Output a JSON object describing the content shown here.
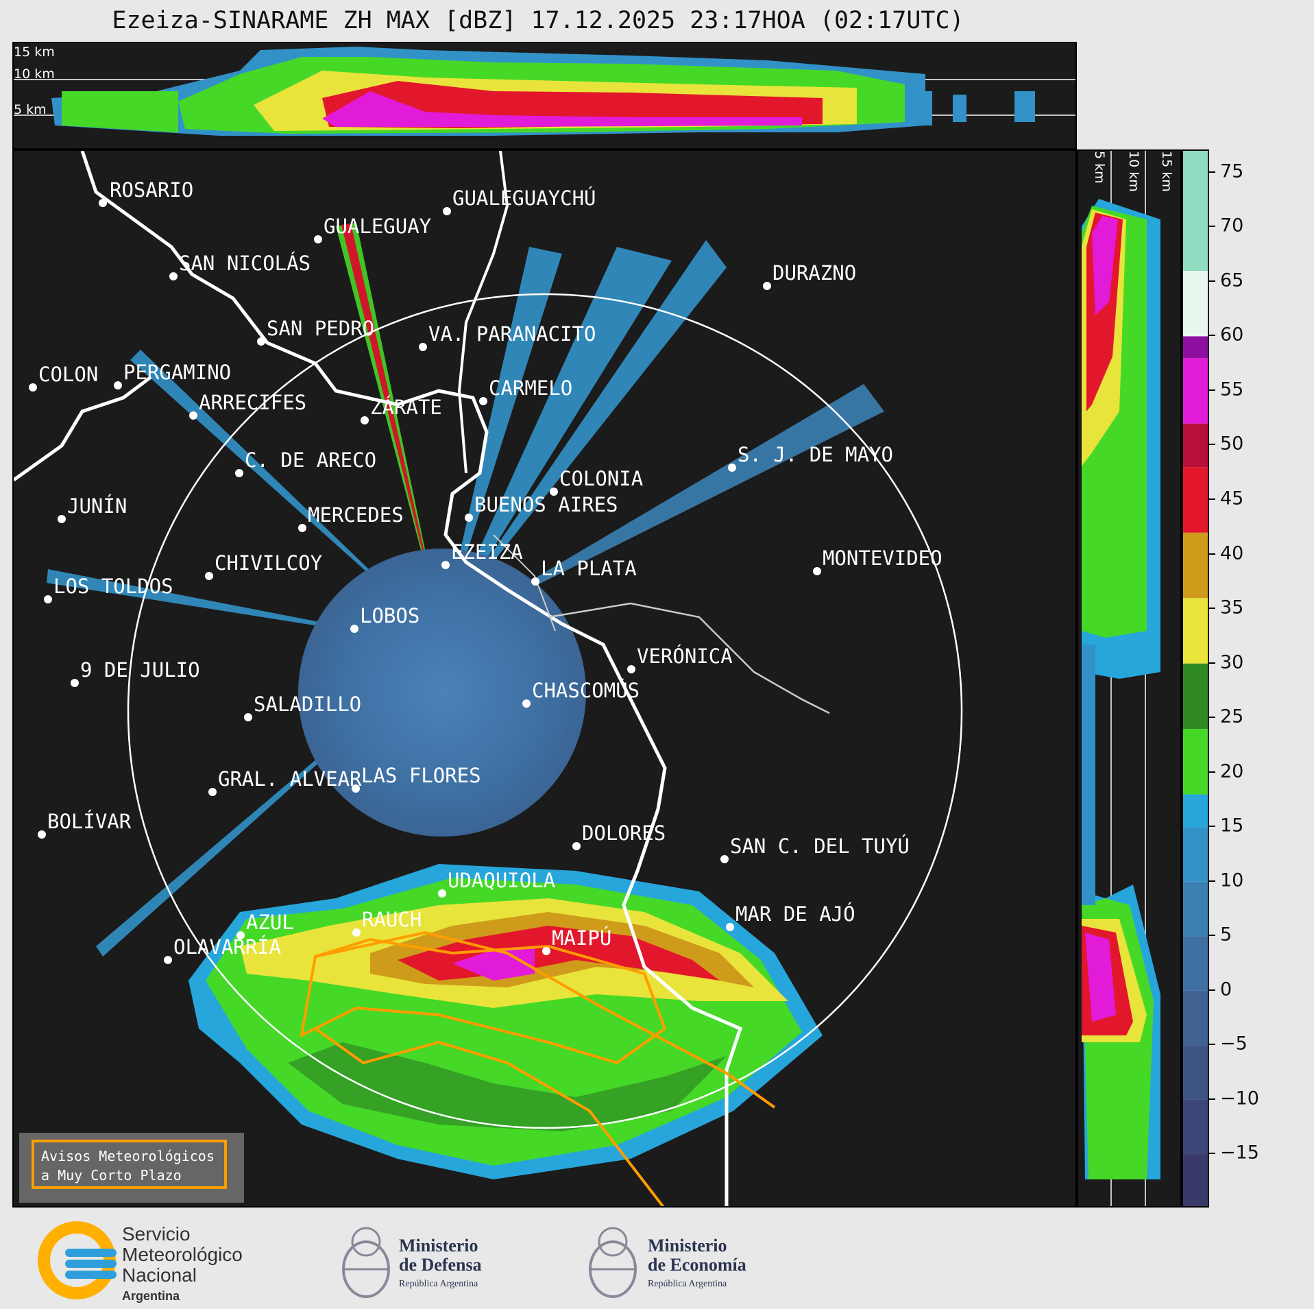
{
  "title": "Ezeiza-SINARAME ZH MAX [dBZ] 17.12.2025 23:17HOA (02:17UTC)",
  "top_panel": {
    "height_labels": [
      "15 km",
      "10 km",
      "5 km"
    ]
  },
  "side_panel": {
    "height_labels": [
      "5 km",
      "10 km",
      "15 km"
    ]
  },
  "colorbar": {
    "unit": "dBZ",
    "ticks": [
      "75",
      "70",
      "65",
      "60",
      "55",
      "50",
      "45",
      "40",
      "35",
      "30",
      "25",
      "20",
      "15",
      "10",
      "5",
      "0",
      "−5",
      "−10",
      "−15"
    ],
    "range": [
      -20,
      77
    ],
    "colors": [
      {
        "from": -20,
        "to": -15,
        "color": "#3a3a6a"
      },
      {
        "from": -15,
        "to": -10,
        "color": "#3c4777"
      },
      {
        "from": -10,
        "to": -5,
        "color": "#3e5485"
      },
      {
        "from": -5,
        "to": 0,
        "color": "#3f6293"
      },
      {
        "from": 0,
        "to": 5,
        "color": "#3f70a3"
      },
      {
        "from": 5,
        "to": 10,
        "color": "#3b80b3"
      },
      {
        "from": 10,
        "to": 15,
        "color": "#3292c8"
      },
      {
        "from": 15,
        "to": 18,
        "color": "#27a6dc"
      },
      {
        "from": 18,
        "to": 24,
        "color": "#45d827"
      },
      {
        "from": 24,
        "to": 30,
        "color": "#2f8a25"
      },
      {
        "from": 30,
        "to": 36,
        "color": "#e8e43b"
      },
      {
        "from": 36,
        "to": 42,
        "color": "#cf9b1a"
      },
      {
        "from": 42,
        "to": 48,
        "color": "#e3172b"
      },
      {
        "from": 48,
        "to": 52,
        "color": "#b50f3a"
      },
      {
        "from": 52,
        "to": 58,
        "color": "#e11bd8"
      },
      {
        "from": 58,
        "to": 60,
        "color": "#8d0fa0"
      },
      {
        "from": 60,
        "to": 66,
        "color": "#e9f6ee"
      },
      {
        "from": 66,
        "to": 77,
        "color": "#8fdcc0"
      }
    ]
  },
  "cities": [
    {
      "name": "ROSARIO"
    },
    {
      "name": "GUALEGUAYCHÚ"
    },
    {
      "name": "GUALEGUAY"
    },
    {
      "name": "SAN NICOLÁS"
    },
    {
      "name": "DURAZNO"
    },
    {
      "name": "SAN PEDRO"
    },
    {
      "name": "VA. PARANACITO"
    },
    {
      "name": "COLON"
    },
    {
      "name": "PERGAMINO"
    },
    {
      "name": "CARMELO"
    },
    {
      "name": "ARRECIFES"
    },
    {
      "name": "ZÁRATE"
    },
    {
      "name": "S. J. DE MAYO"
    },
    {
      "name": "C. DE ARECO"
    },
    {
      "name": "COLONIA"
    },
    {
      "name": "JUNÍN"
    },
    {
      "name": "BUENOS AIRES"
    },
    {
      "name": "MERCEDES"
    },
    {
      "name": "EZEIZA"
    },
    {
      "name": "MONTEVIDEO"
    },
    {
      "name": "CHIVILCOY"
    },
    {
      "name": "LA PLATA"
    },
    {
      "name": "LOS TOLDOS"
    },
    {
      "name": "LOBOS"
    },
    {
      "name": "VERÓNICA"
    },
    {
      "name": "9 DE JULIO"
    },
    {
      "name": "CHASCOMÚS"
    },
    {
      "name": "SALADILLO"
    },
    {
      "name": "GRAL. ALVEAR"
    },
    {
      "name": "LAS FLORES"
    },
    {
      "name": "BOLÍVAR"
    },
    {
      "name": "DOLORES"
    },
    {
      "name": "SAN C. DEL TUYÚ"
    },
    {
      "name": "UDAQUIOLA"
    },
    {
      "name": "MAR DE AJÓ"
    },
    {
      "name": "AZUL"
    },
    {
      "name": "RAUCH"
    },
    {
      "name": "OLAVARRÍA"
    },
    {
      "name": "MAIPÚ"
    }
  ],
  "legend": {
    "line1": "Avisos Meteorológicos",
    "line2": "a Muy Corto Plazo"
  },
  "footer": {
    "smn": {
      "l1": "Servicio",
      "l2": "Meteorológico",
      "l3": "Nacional",
      "l4": "Argentina"
    },
    "defensa": {
      "l1": "Ministerio",
      "l2": "de Defensa",
      "l3": "República Argentina"
    },
    "economia": {
      "l1": "Ministerio",
      "l2": "de Economía",
      "l3": "República Argentina"
    }
  }
}
